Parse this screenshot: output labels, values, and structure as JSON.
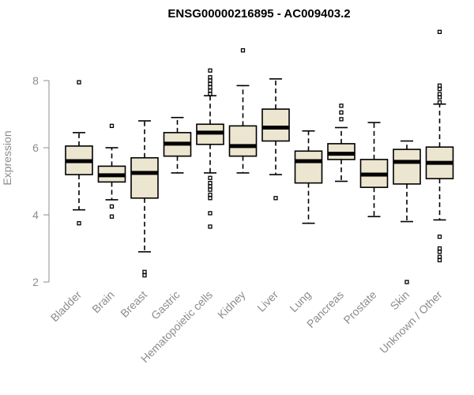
{
  "chart_data": {
    "type": "boxplot",
    "title": "ENSG00000216895 - AC009403.2",
    "xlabel": "",
    "ylabel": "Expression",
    "ylim": [
      2,
      9.5
    ],
    "yticks": [
      2,
      4,
      6,
      8
    ],
    "grid": false,
    "box_fill": "#ece5cf",
    "categories": [
      "Bladder",
      "Brain",
      "Breast",
      "Gastric",
      "Hematopoietic cells",
      "Kidney",
      "Liver",
      "Lung",
      "Pancreas",
      "Prostate",
      "Skin",
      "Unknown / Other"
    ],
    "boxes": [
      {
        "q1": 5.2,
        "median": 5.6,
        "q3": 6.05,
        "whisker_low": 4.15,
        "whisker_high": 6.45,
        "outliers": [
          7.95,
          3.75
        ]
      },
      {
        "q1": 4.98,
        "median": 5.18,
        "q3": 5.45,
        "whisker_low": 4.45,
        "whisker_high": 6.0,
        "outliers": [
          6.65,
          4.25,
          3.95
        ]
      },
      {
        "q1": 4.5,
        "median": 5.25,
        "q3": 5.7,
        "whisker_low": 2.9,
        "whisker_high": 6.8,
        "outliers": [
          2.3,
          2.2
        ]
      },
      {
        "q1": 5.75,
        "median": 6.12,
        "q3": 6.45,
        "whisker_low": 5.25,
        "whisker_high": 6.9,
        "outliers": []
      },
      {
        "q1": 6.1,
        "median": 6.45,
        "q3": 6.7,
        "whisker_low": 5.25,
        "whisker_high": 7.55,
        "outliers": [
          8.3,
          8.1,
          8.0,
          7.9,
          7.8,
          7.7,
          7.6,
          5.1,
          4.95,
          4.85,
          4.75,
          4.6,
          4.5,
          4.05,
          3.65
        ]
      },
      {
        "q1": 5.75,
        "median": 6.05,
        "q3": 6.65,
        "whisker_low": 5.25,
        "whisker_high": 7.85,
        "outliers": [
          8.9
        ]
      },
      {
        "q1": 6.2,
        "median": 6.6,
        "q3": 7.15,
        "whisker_low": 5.2,
        "whisker_high": 8.05,
        "outliers": [
          4.5
        ]
      },
      {
        "q1": 4.95,
        "median": 5.6,
        "q3": 5.9,
        "whisker_low": 3.75,
        "whisker_high": 6.5,
        "outliers": []
      },
      {
        "q1": 5.65,
        "median": 5.82,
        "q3": 6.12,
        "whisker_low": 5.0,
        "whisker_high": 6.6,
        "outliers": [
          7.25,
          7.05,
          6.85
        ]
      },
      {
        "q1": 4.82,
        "median": 5.2,
        "q3": 5.65,
        "whisker_low": 3.95,
        "whisker_high": 6.75,
        "outliers": []
      },
      {
        "q1": 4.92,
        "median": 5.58,
        "q3": 5.95,
        "whisker_low": 3.8,
        "whisker_high": 6.2,
        "outliers": [
          2.0
        ]
      },
      {
        "q1": 5.08,
        "median": 5.55,
        "q3": 6.02,
        "whisker_low": 3.85,
        "whisker_high": 7.3,
        "outliers": [
          9.45,
          7.85,
          7.75,
          7.6,
          7.5,
          7.35,
          3.35,
          3.0,
          2.9,
          2.75,
          2.65
        ]
      }
    ]
  }
}
